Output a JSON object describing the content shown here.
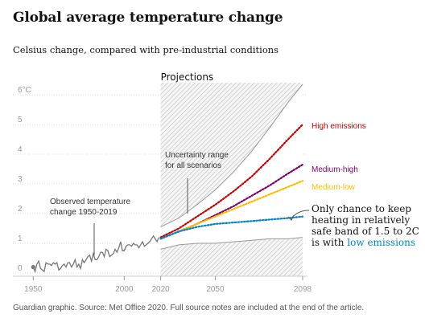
{
  "title": "Global average temperature change",
  "subtitle": "Celsius change, compared with pre-industrial conditions",
  "source": "Guardian graphic. Source: Met Office 2020. Full source notes are included at the end of the article.",
  "colors": {
    "observed": "#777777",
    "high": "#c70000",
    "medium_high": "#7d0068",
    "medium_low": "#ffbb00",
    "low": "#0084c6",
    "band": "#999999"
  },
  "chart_data": {
    "type": "line",
    "title": "Global average temperature change",
    "subtitle": "Celsius change, compared with pre-industrial conditions",
    "xlim": [
      1945,
      2098
    ],
    "ylim": [
      0,
      6
    ],
    "x_ticks": [
      "1950",
      "2000",
      "2020",
      "2050",
      "2098"
    ],
    "y_ticks": [
      "0",
      "1",
      "2",
      "3",
      "4",
      "5",
      "6°C"
    ],
    "grid": true,
    "projections_label": "Projections",
    "projections_start": 2020,
    "observed": {
      "name": "Observed temperature change 1950-2019",
      "x": [
        1950,
        1951,
        1952,
        1953,
        1954,
        1955,
        1956,
        1957,
        1958,
        1959,
        1960,
        1961,
        1962,
        1963,
        1964,
        1965,
        1966,
        1967,
        1968,
        1969,
        1970,
        1971,
        1972,
        1973,
        1974,
        1975,
        1976,
        1977,
        1978,
        1979,
        1980,
        1981,
        1982,
        1983,
        1984,
        1985,
        1986,
        1987,
        1988,
        1989,
        1990,
        1991,
        1992,
        1993,
        1994,
        1995,
        1996,
        1997,
        1998,
        1999,
        2000,
        2001,
        2002,
        2003,
        2004,
        2005,
        2006,
        2007,
        2008,
        2009,
        2010,
        2011,
        2012,
        2013,
        2014,
        2015,
        2016,
        2017,
        2018,
        2019
      ],
      "values": [
        0.2,
        0.05,
        0.3,
        0.4,
        0.15,
        0.1,
        0.05,
        0.35,
        0.3,
        0.3,
        0.25,
        0.35,
        0.3,
        0.35,
        0.1,
        0.15,
        0.25,
        0.3,
        0.2,
        0.35,
        0.35,
        0.2,
        0.3,
        0.45,
        0.2,
        0.3,
        0.15,
        0.45,
        0.35,
        0.45,
        0.55,
        0.6,
        0.4,
        0.65,
        0.45,
        0.45,
        0.55,
        0.7,
        0.7,
        0.55,
        0.8,
        0.75,
        0.55,
        0.6,
        0.65,
        0.8,
        0.7,
        0.85,
        1.05,
        0.75,
        0.75,
        0.9,
        0.95,
        0.95,
        0.9,
        1.0,
        0.95,
        0.95,
        0.85,
        0.95,
        1.05,
        0.9,
        0.95,
        1.0,
        1.05,
        1.15,
        1.25,
        1.15,
        1.05,
        1.2
      ]
    },
    "series": [
      {
        "name": "High emissions",
        "x": [
          2020,
          2030,
          2040,
          2050,
          2060,
          2070,
          2080,
          2090,
          2098
        ],
        "values": [
          1.2,
          1.5,
          1.9,
          2.3,
          2.75,
          3.25,
          3.85,
          4.5,
          5.0
        ]
      },
      {
        "name": "Medium-high",
        "x": [
          2020,
          2030,
          2040,
          2050,
          2060,
          2070,
          2080,
          2090,
          2098
        ],
        "values": [
          1.15,
          1.4,
          1.65,
          1.95,
          2.25,
          2.6,
          2.95,
          3.35,
          3.65
        ]
      },
      {
        "name": "Medium-low",
        "x": [
          2020,
          2030,
          2040,
          2050,
          2060,
          2070,
          2080,
          2090,
          2098
        ],
        "values": [
          1.15,
          1.4,
          1.65,
          1.9,
          2.15,
          2.4,
          2.65,
          2.9,
          3.1
        ]
      },
      {
        "name": "Low emissions",
        "x": [
          2020,
          2030,
          2040,
          2050,
          2060,
          2070,
          2080,
          2090,
          2098
        ],
        "values": [
          1.15,
          1.4,
          1.55,
          1.65,
          1.7,
          1.75,
          1.8,
          1.85,
          1.9
        ]
      }
    ],
    "uncertainty_band": {
      "name": "Uncertainty range for all scenarios",
      "x": [
        2020,
        2030,
        2040,
        2050,
        2060,
        2070,
        2080,
        2090,
        2098
      ],
      "upper": [
        1.55,
        1.85,
        2.3,
        2.8,
        3.4,
        4.1,
        4.9,
        5.75,
        6.35
      ],
      "lower": [
        0.8,
        0.95,
        1.0,
        1.0,
        1.05,
        1.1,
        1.15,
        1.15,
        1.2
      ]
    },
    "annotations": {
      "observed": [
        "Observed temperature",
        "change 1950-2019"
      ],
      "uncertainty": [
        "Uncertainty range",
        "for all scenarios"
      ],
      "callout": [
        "Only chance to keep",
        "heating in relatively",
        "safe band of 1.5 to 2C",
        "is with "
      ],
      "callout_highlight": "low emissions"
    }
  }
}
